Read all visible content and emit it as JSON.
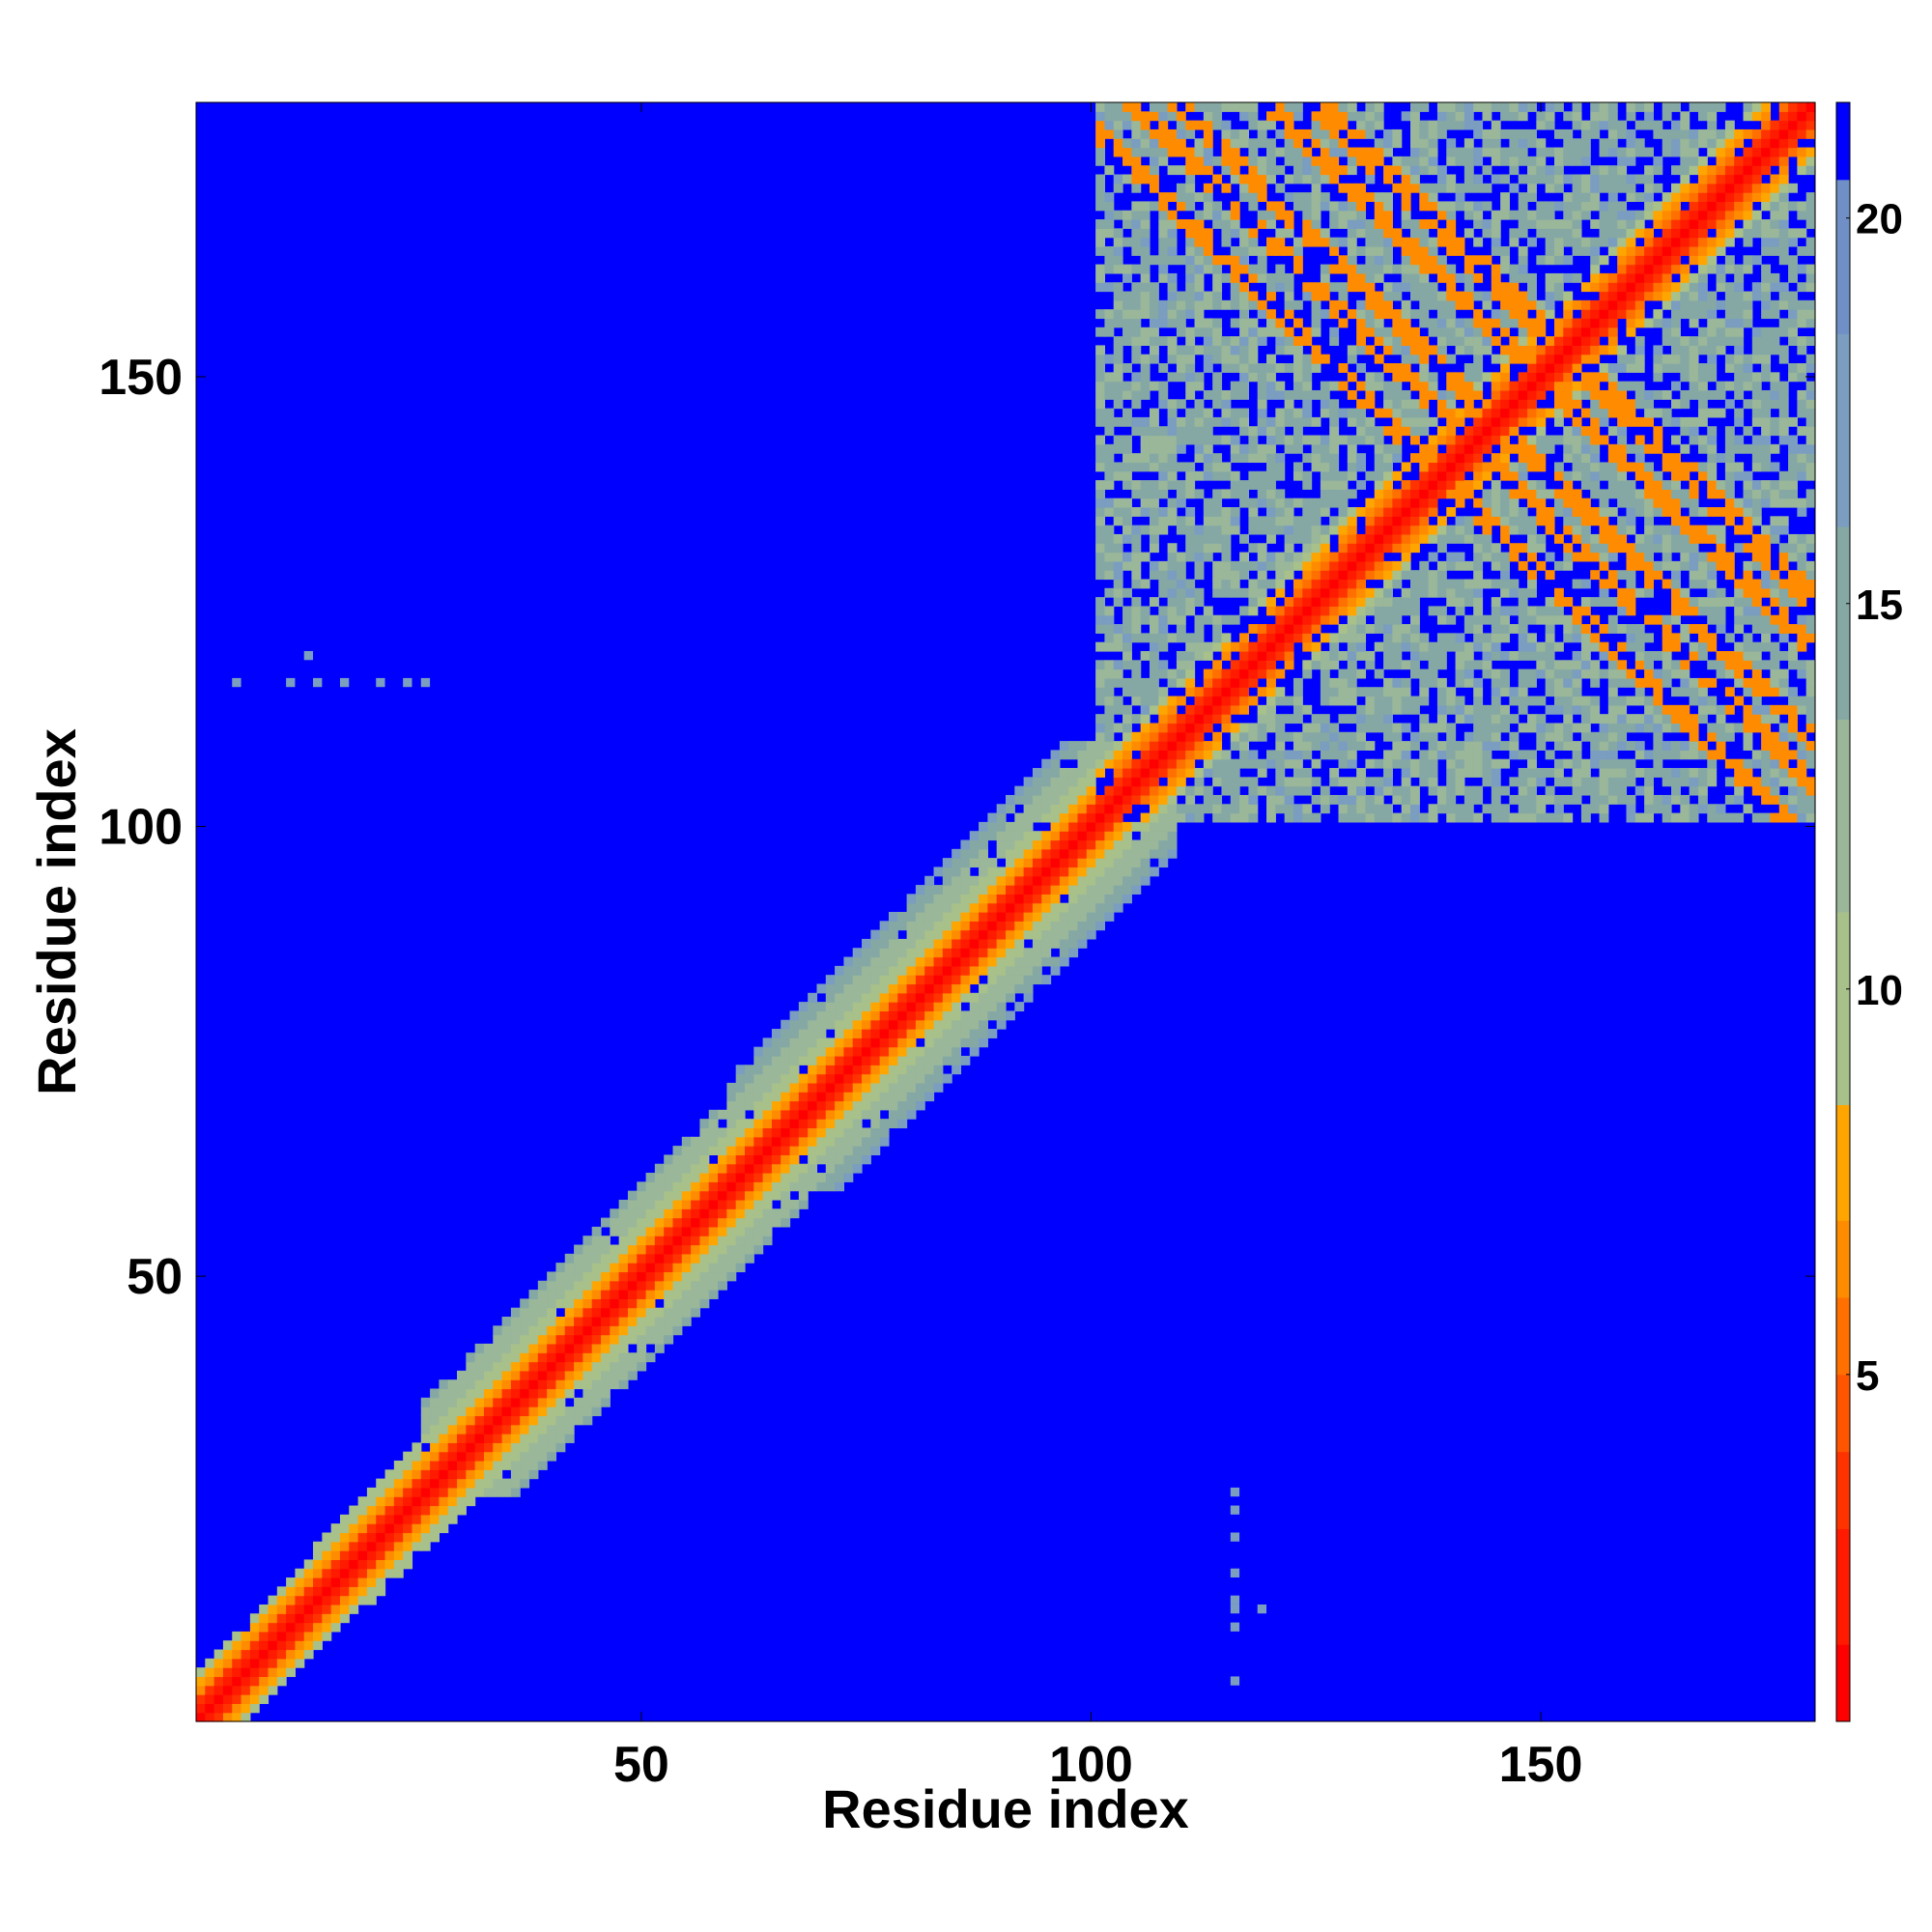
{
  "chart_data": {
    "type": "heatmap",
    "title": "",
    "xlabel": "Residue index",
    "ylabel": "Residue index",
    "n_residues": 180,
    "xlim": [
      1,
      180
    ],
    "ylim": [
      1,
      180
    ],
    "x_ticks": [
      {
        "value": 50,
        "label": "50"
      },
      {
        "value": 100,
        "label": "100"
      },
      {
        "value": 150,
        "label": "150"
      }
    ],
    "y_ticks": [
      {
        "value": 50,
        "label": "50"
      },
      {
        "value": 100,
        "label": "100"
      },
      {
        "value": 150,
        "label": "150"
      }
    ],
    "colorbar": {
      "range": [
        0.5,
        21.5
      ],
      "ticks": [
        {
          "value": 5,
          "label": "5"
        },
        {
          "value": 10,
          "label": "10"
        },
        {
          "value": 15,
          "label": "15"
        },
        {
          "value": 20,
          "label": "20"
        }
      ],
      "levels": [
        {
          "max": 1.5,
          "color": "#ff0000"
        },
        {
          "max": 3.0,
          "color": "#ff1a00"
        },
        {
          "max": 4.0,
          "color": "#ff3300"
        },
        {
          "max": 5.0,
          "color": "#ff5500"
        },
        {
          "max": 6.0,
          "color": "#ff7000"
        },
        {
          "max": 7.0,
          "color": "#ff8c00"
        },
        {
          "max": 8.5,
          "color": "#ffa500"
        },
        {
          "max": 11.0,
          "color": "#a8c08a"
        },
        {
          "max": 13.5,
          "color": "#9ab79a"
        },
        {
          "max": 16.0,
          "color": "#85a8a4"
        },
        {
          "max": 18.5,
          "color": "#7a9dc0"
        },
        {
          "max": 20.5,
          "color": "#6f8fc6"
        },
        {
          "max": 21.5,
          "color": "#0000ff"
        }
      ]
    },
    "background_value": 21,
    "background_color": "#0000ff",
    "diagonal_band_halfwidth": 2,
    "contact_regions": [
      {
        "from": 1,
        "to": 14,
        "halfwidth": 5
      },
      {
        "from": 14,
        "to": 27,
        "halfwidth": 6
      },
      {
        "from": 26,
        "to": 58,
        "halfwidth": 10
      },
      {
        "from": 60,
        "to": 97,
        "halfwidth": 12
      },
      {
        "from": 95,
        "to": 103,
        "halfwidth": 6
      }
    ],
    "dense_block": {
      "from": 101,
      "to": 180,
      "fill_fraction": 0.72
    },
    "off_diagonal_contacts": [
      {
        "center": [
          130,
          160
        ],
        "value": 7
      },
      {
        "center": [
          135,
          150
        ],
        "value": 7
      },
      {
        "center": [
          145,
          133
        ],
        "value": 7
      },
      {
        "center": [
          160,
          140
        ],
        "value": 7
      },
      {
        "center": [
          170,
          135
        ],
        "value": 7
      },
      {
        "center": [
          173,
          133
        ],
        "value": 7
      }
    ],
    "isolated_contacts": [
      {
        "x": 5,
        "y": 116,
        "value": 17
      },
      {
        "x": 11,
        "y": 116,
        "value": 17
      },
      {
        "x": 13,
        "y": 119,
        "value": 17
      },
      {
        "x": 14,
        "y": 116,
        "value": 17
      },
      {
        "x": 17,
        "y": 116,
        "value": 17
      },
      {
        "x": 21,
        "y": 116,
        "value": 17
      },
      {
        "x": 24,
        "y": 116,
        "value": 17
      },
      {
        "x": 26,
        "y": 116,
        "value": 17
      },
      {
        "x": 116,
        "y": 5,
        "value": 17
      },
      {
        "x": 116,
        "y": 11,
        "value": 17
      },
      {
        "x": 116,
        "y": 13,
        "value": 17
      },
      {
        "x": 116,
        "y": 14,
        "value": 17
      },
      {
        "x": 116,
        "y": 17,
        "value": 17
      },
      {
        "x": 119,
        "y": 13,
        "value": 17
      },
      {
        "x": 116,
        "y": 21,
        "value": 17
      },
      {
        "x": 116,
        "y": 24,
        "value": 17
      },
      {
        "x": 116,
        "y": 26,
        "value": 17
      }
    ],
    "grid": false
  }
}
